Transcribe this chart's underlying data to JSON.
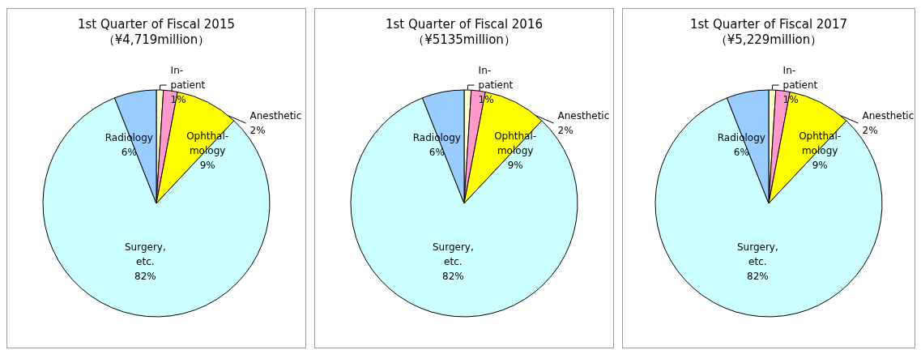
{
  "chart_data": [
    {
      "type": "pie",
      "title": "1st Quarter of Fiscal 2015",
      "subtitle": "（¥4,719million）",
      "categories": [
        "In-\npatient",
        "Anesthetic",
        "Ophthal-\nmology",
        "Surgery,\netc.",
        "Radiology"
      ],
      "values": [
        1,
        2,
        9,
        82,
        6
      ],
      "value_labels": [
        "1%",
        "2%",
        "9%",
        "82%",
        "6%"
      ],
      "colors": [
        "#ffffcc",
        "#ff99cc",
        "#ffff00",
        "#ccffff",
        "#99ccff"
      ],
      "legend": false
    },
    {
      "type": "pie",
      "title": "1st Quarter of Fiscal 2016",
      "subtitle": "（¥5135million）",
      "categories": [
        "In-\npatient",
        "Anesthetic",
        "Ophthal-\nmology",
        "Surgery,\netc.",
        "Radiology"
      ],
      "values": [
        1,
        2,
        9,
        82,
        6
      ],
      "value_labels": [
        "1%",
        "2%",
        "9%",
        "82%",
        "6%"
      ],
      "colors": [
        "#ffffcc",
        "#ff99cc",
        "#ffff00",
        "#ccffff",
        "#99ccff"
      ],
      "legend": false
    },
    {
      "type": "pie",
      "title": "1st Quarter of Fiscal 2017",
      "subtitle": "（¥5,229million）",
      "categories": [
        "In-\npatient",
        "Anesthetic",
        "Ophthal-\nmology",
        "Surgery,\netc.",
        "Radiology"
      ],
      "values": [
        1,
        2,
        9,
        82,
        6
      ],
      "value_labels": [
        "1%",
        "2%",
        "9%",
        "82%",
        "6%"
      ],
      "colors": [
        "#ffffcc",
        "#ff99cc",
        "#ffff00",
        "#ccffff",
        "#99ccff"
      ],
      "legend": false
    }
  ]
}
